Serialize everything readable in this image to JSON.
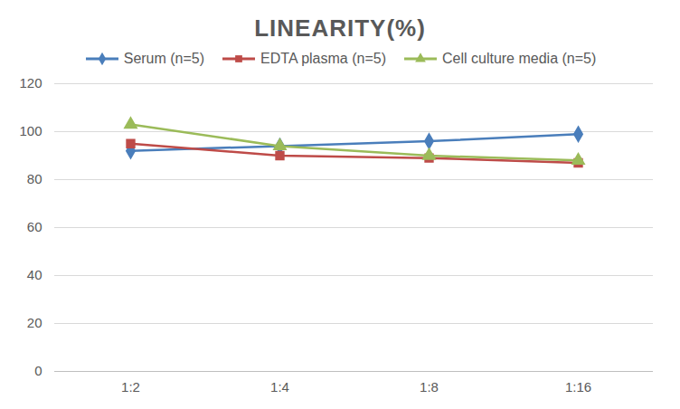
{
  "chart_data": {
    "type": "line",
    "title": "LINEARITY(%)",
    "categories": [
      "1:2",
      "1:4",
      "1:8",
      "1:16"
    ],
    "series": [
      {
        "name": "Serum (n=5)",
        "color": "#4a7ebb",
        "marker": "diamond",
        "values": [
          92,
          94,
          96,
          99
        ]
      },
      {
        "name": "EDTA plasma (n=5)",
        "color": "#be4b48",
        "marker": "square",
        "values": [
          95,
          90,
          89,
          87
        ]
      },
      {
        "name": "Cell culture media (n=5)",
        "color": "#9bbb59",
        "marker": "triangle",
        "values": [
          103,
          94,
          90,
          88
        ]
      }
    ],
    "ylim": [
      0,
      120
    ],
    "yticks": [
      0,
      20,
      40,
      60,
      80,
      100,
      120
    ],
    "grid": true,
    "legend": "top"
  }
}
